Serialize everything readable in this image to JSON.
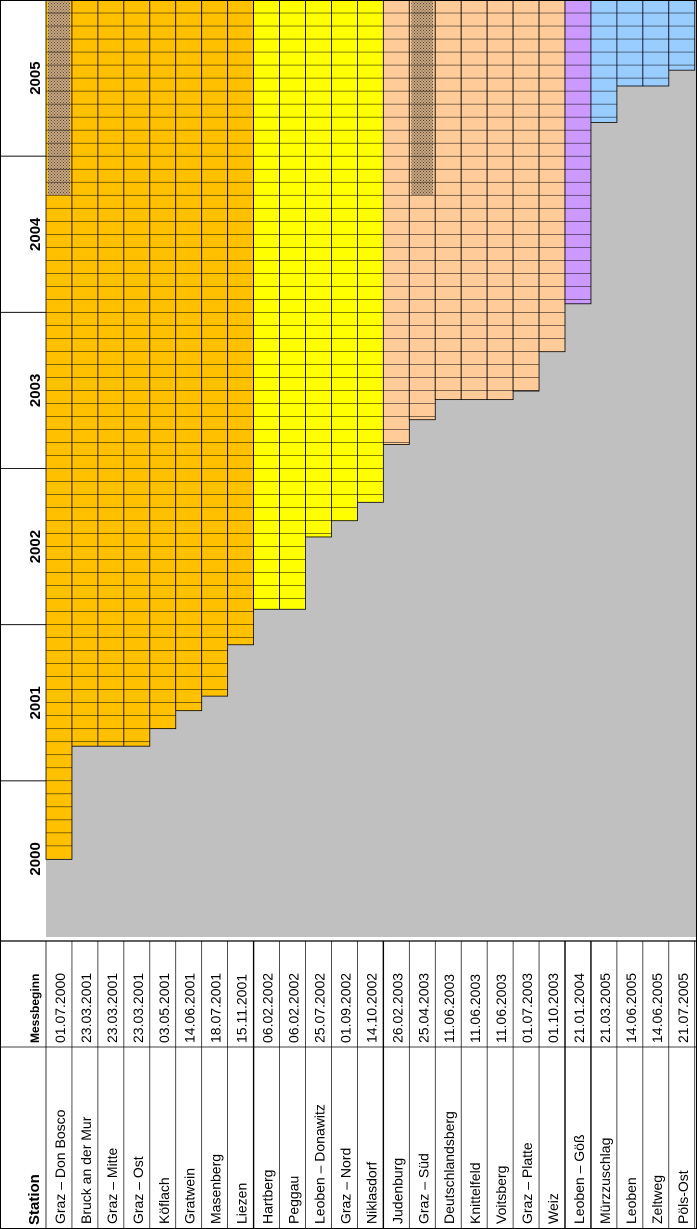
{
  "chart_data": {
    "type": "bar",
    "header": {
      "station": "Station",
      "start": "Messbeginn"
    },
    "years": [
      "2000",
      "2001",
      "2002",
      "2003",
      "2004",
      "2005"
    ],
    "categories": [
      "Graz – Don Bosco",
      "Bruck an der Mur",
      "Graz – Mitte",
      "Graz – Ost",
      "Köflach",
      "Gratwein",
      "Masenberg",
      "Liezen",
      "Hartberg",
      "Peggau",
      "Leoben – Donawitz",
      "Graz – Nord",
      "Niklasdorf",
      "Judenburg",
      "Graz – Süd",
      "Deutschlandsberg",
      "Knittelfeld",
      "Voitsberg",
      "Graz – Platte",
      "Weiz",
      "Leoben – Göß",
      "Mürzzuschlag",
      "Leoben",
      "Zeltweg",
      "Pöls-Ost"
    ],
    "dates": [
      "01.07.2000",
      "23.03.2001",
      "23.03.2001",
      "23.03.2001",
      "03.05.2001",
      "14.06.2001",
      "18.07.2001",
      "15.11.2001",
      "06.02.2002",
      "06.02.2002",
      "25.07.2002",
      "01.09.2002",
      "14.10.2002",
      "26.02.2003",
      "25.04.2003",
      "11.06.2003",
      "11.06.2003",
      "11.06.2003",
      "01.07.2003",
      "01.10.2003",
      "21.01.2004",
      "21.03.2005",
      "14.06.2005",
      "14.06.2005",
      "21.07.2005"
    ],
    "x_range": [
      "2000-01-01",
      "2005-12-31"
    ],
    "hatched": [
      {
        "station": "Graz – Don Bosco",
        "from": "2004-10-01",
        "to": "2005-12-31"
      },
      {
        "station": "Graz – Süd",
        "from": "2004-10-01",
        "to": "2005-12-31"
      }
    ],
    "colors": {
      "group_2000_2001": "#ffc000",
      "group_2002": "#ffff00",
      "group_2003": "#ffcc99",
      "group_2004": "#cc99ff",
      "group_2005": "#99ccff",
      "hatched": "#c8a882",
      "empty": "#c0c0c0",
      "grid": "#000000"
    }
  }
}
